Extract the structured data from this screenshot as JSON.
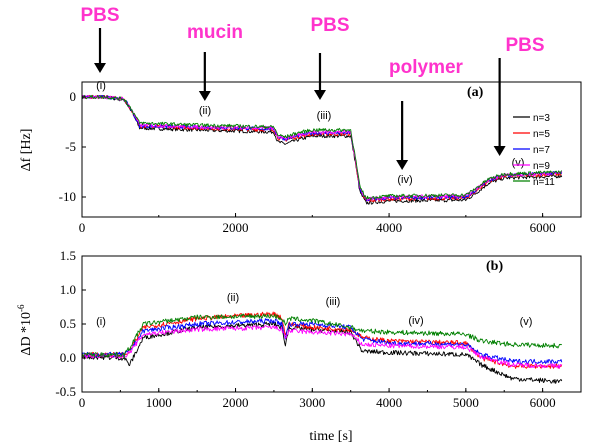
{
  "colors": {
    "annotation": "#ff33cc",
    "n3": "#000000",
    "n5": "#ff0000",
    "n7": "#0000ff",
    "n9": "#ff00ff",
    "n11": "#008000"
  },
  "annotations": {
    "phases": [
      "PBS",
      "mucin",
      "PBS",
      "polymer",
      "PBS"
    ]
  },
  "chart_data": [
    {
      "type": "line",
      "panel": "(a)",
      "ylabel": "Δf [Hz]",
      "xlim": [
        0,
        6500
      ],
      "ylim": [
        -12,
        1.5
      ],
      "xticks": [
        "0",
        "2000",
        "4000",
        "6000"
      ],
      "yticks": [
        "0",
        "-5",
        "-10"
      ],
      "segment_labels": [
        "(i)",
        "(ii)",
        "(iii)",
        "(iv)",
        "(v)"
      ],
      "legend": [
        "n=3",
        "n=5",
        "n=7",
        "n=9",
        "n=11"
      ],
      "series": [
        {
          "name": "n=3",
          "x": [
            0,
            300,
            550,
            650,
            750,
            1500,
            2500,
            2550,
            2650,
            2800,
            3000,
            3500,
            3560,
            3620,
            3700,
            4000,
            5000,
            5100,
            5300,
            5500,
            6250
          ],
          "y": [
            0,
            0,
            -0.3,
            -1.5,
            -3.1,
            -3.3,
            -3.5,
            -4.5,
            -4.7,
            -4.3,
            -3.9,
            -3.9,
            -6.5,
            -9.5,
            -10.6,
            -10.4,
            -10.3,
            -9.8,
            -8.6,
            -8.1,
            -7.9
          ]
        },
        {
          "name": "n=5",
          "x": [
            0,
            300,
            550,
            650,
            750,
            1500,
            2500,
            2550,
            2650,
            2800,
            3000,
            3500,
            3560,
            3620,
            3700,
            4000,
            5000,
            5100,
            5300,
            5500,
            6250
          ],
          "y": [
            0,
            0,
            -0.2,
            -1.4,
            -2.9,
            -3.1,
            -3.3,
            -4.1,
            -4.3,
            -4.0,
            -3.7,
            -3.7,
            -6.3,
            -9.3,
            -10.4,
            -10.2,
            -10.1,
            -9.6,
            -8.4,
            -7.9,
            -7.7
          ]
        },
        {
          "name": "n=7",
          "x": [
            0,
            300,
            550,
            650,
            750,
            1500,
            2500,
            2550,
            2650,
            2800,
            3000,
            3500,
            3560,
            3620,
            3700,
            4000,
            5000,
            5100,
            5300,
            5500,
            6250
          ],
          "y": [
            0,
            0,
            -0.2,
            -1.4,
            -2.9,
            -3.0,
            -3.2,
            -4.0,
            -4.2,
            -3.9,
            -3.6,
            -3.6,
            -6.2,
            -9.2,
            -10.3,
            -10.1,
            -10.0,
            -9.5,
            -8.3,
            -7.8,
            -7.6
          ]
        },
        {
          "name": "n=9",
          "x": [
            0,
            300,
            550,
            650,
            750,
            1500,
            2500,
            2550,
            2650,
            2800,
            3000,
            3500,
            3560,
            3620,
            3700,
            4000,
            5000,
            5100,
            5300,
            5500,
            6250
          ],
          "y": [
            0,
            0,
            -0.2,
            -1.3,
            -2.8,
            -3.0,
            -3.1,
            -3.9,
            -4.1,
            -3.8,
            -3.5,
            -3.5,
            -6.1,
            -9.1,
            -10.2,
            -10.0,
            -9.9,
            -9.4,
            -8.3,
            -7.8,
            -7.6
          ]
        },
        {
          "name": "n=11",
          "x": [
            0,
            300,
            550,
            650,
            750,
            1500,
            2500,
            2550,
            2650,
            2800,
            3000,
            3500,
            3560,
            3620,
            3700,
            4000,
            5000,
            5100,
            5300,
            5500,
            6250
          ],
          "y": [
            0,
            0,
            -0.2,
            -1.3,
            -2.6,
            -2.8,
            -3.0,
            -3.8,
            -4.0,
            -3.6,
            -3.3,
            -3.3,
            -6.0,
            -9.0,
            -10.1,
            -9.9,
            -9.8,
            -9.3,
            -8.2,
            -7.7,
            -7.5
          ]
        }
      ]
    },
    {
      "type": "line",
      "panel": "(b)",
      "ylabel": "ΔD *10",
      "ylabel_exp": "-6",
      "xlabel": "time [s]",
      "xlim": [
        0,
        6500
      ],
      "ylim": [
        -0.5,
        1.5
      ],
      "xticks": [
        "0",
        "1000",
        "2000",
        "3000",
        "4000",
        "5000",
        "6000"
      ],
      "yticks": [
        "-0.5",
        "0.0",
        "0.5",
        "1.0",
        "1.5"
      ],
      "segment_labels": [
        "(i)",
        "(ii)",
        "(iii)",
        "(iv)",
        "(v)"
      ],
      "series": [
        {
          "name": "n=3",
          "x": [
            0,
            550,
            620,
            800,
            1500,
            2500,
            2600,
            2650,
            2700,
            3000,
            3500,
            3650,
            4000,
            5000,
            5200,
            5600,
            6250
          ],
          "y": [
            0.02,
            0.0,
            -0.1,
            0.3,
            0.45,
            0.5,
            0.45,
            0.2,
            0.45,
            0.42,
            0.38,
            0.1,
            0.08,
            0.05,
            -0.1,
            -0.3,
            -0.35
          ]
        },
        {
          "name": "n=5",
          "x": [
            0,
            550,
            620,
            800,
            1500,
            2500,
            2600,
            2650,
            2700,
            3000,
            3500,
            3650,
            4000,
            5000,
            5200,
            5600,
            6250
          ],
          "y": [
            0.05,
            0.05,
            0.1,
            0.45,
            0.58,
            0.65,
            0.6,
            0.35,
            0.5,
            0.45,
            0.42,
            0.3,
            0.25,
            0.22,
            0.0,
            -0.12,
            -0.12
          ]
        },
        {
          "name": "n=7",
          "x": [
            0,
            550,
            620,
            800,
            1500,
            2500,
            2600,
            2650,
            2700,
            3000,
            3500,
            3650,
            4000,
            5000,
            5200,
            5600,
            6250
          ],
          "y": [
            0.05,
            0.05,
            0.1,
            0.4,
            0.5,
            0.55,
            0.5,
            0.3,
            0.5,
            0.5,
            0.45,
            0.28,
            0.22,
            0.2,
            0.05,
            -0.05,
            -0.05
          ]
        },
        {
          "name": "n=9",
          "x": [
            0,
            550,
            620,
            800,
            1500,
            2500,
            2600,
            2650,
            2700,
            3000,
            3500,
            3650,
            4000,
            5000,
            5200,
            5600,
            6250
          ],
          "y": [
            0.03,
            0.03,
            0.08,
            0.35,
            0.42,
            0.45,
            0.42,
            0.3,
            0.4,
            0.38,
            0.35,
            0.2,
            0.18,
            0.16,
            0.02,
            -0.1,
            -0.12
          ]
        },
        {
          "name": "n=11",
          "x": [
            0,
            550,
            620,
            800,
            1500,
            2500,
            2600,
            2650,
            2700,
            3000,
            3500,
            3650,
            4000,
            5000,
            5200,
            5600,
            6250
          ],
          "y": [
            0.05,
            0.05,
            0.15,
            0.5,
            0.6,
            0.62,
            0.58,
            0.5,
            0.58,
            0.55,
            0.45,
            0.4,
            0.38,
            0.35,
            0.25,
            0.2,
            0.18
          ]
        }
      ]
    }
  ]
}
